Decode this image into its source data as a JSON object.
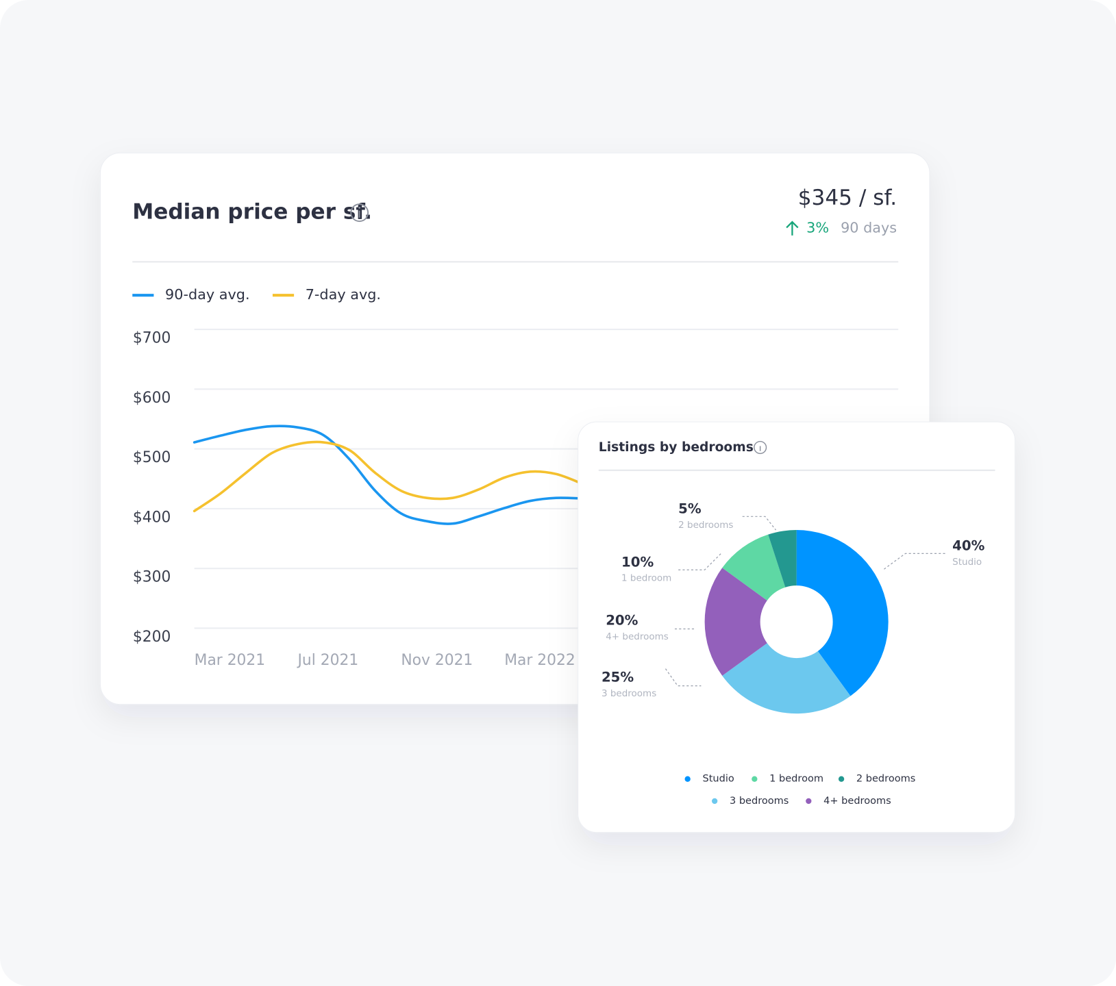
{
  "price_card": {
    "value": "$345 / sf.",
    "change": "3%",
    "period": "90 days"
  },
  "chart_data": [
    {
      "type": "line",
      "title": "Median price per sf.",
      "categories": [
        "Mar 2021",
        null,
        null,
        null,
        "Jul 2021",
        null,
        null,
        null,
        "Nov 2021",
        null,
        null,
        null,
        "Mar 2022",
        null,
        null,
        null
      ],
      "series": [
        {
          "name": "90-day avg.",
          "color": "#1a96f0",
          "values": [
            511,
            522,
            532,
            538,
            536,
            523,
            483,
            430,
            392,
            379,
            375,
            387,
            401,
            413,
            418,
            417
          ]
        },
        {
          "name": "7-day avg.",
          "color": "#f5c12e",
          "values": [
            396,
            425,
            460,
            493,
            508,
            511,
            498,
            460,
            430,
            418,
            418,
            432,
            452,
            462,
            458,
            442
          ]
        }
      ],
      "ylim": [
        200,
        700
      ],
      "yticks": [
        {
          "value": 700,
          "label": "$700"
        },
        {
          "value": 600,
          "label": "$600"
        },
        {
          "value": 500,
          "label": "$500"
        },
        {
          "value": 400,
          "label": "$400"
        },
        {
          "value": 300,
          "label": "$300"
        },
        {
          "value": 200,
          "label": "$200"
        }
      ],
      "grid": true
    },
    {
      "type": "pie",
      "title": "Listings by bedrooms",
      "categories": [
        "Studio",
        "3 bedrooms",
        "4+ bedrooms",
        "1 bedroom",
        "2 bedrooms"
      ],
      "values": [
        40,
        25,
        20,
        10,
        5
      ],
      "value_labels": [
        "40%",
        "25%",
        "20%",
        "10%",
        "5%"
      ],
      "colors": [
        "#0094ff",
        "#6cc8ee",
        "#9360bb",
        "#5ed8a4",
        "#239890"
      ]
    }
  ]
}
